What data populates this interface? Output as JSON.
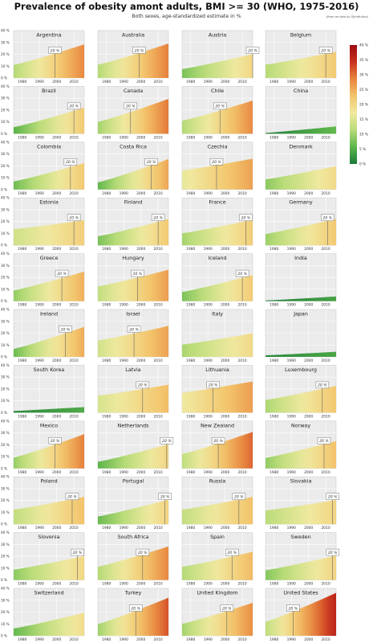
{
  "chart_data": {
    "type": "area",
    "title": "Prevalence of obesity amont adults, BMI >= 30 (WHO, 1975-2016)",
    "subtitle": "Both sexes, age-standardized estimate in %",
    "credit": "(from an idea by @jmtfulton)",
    "x_range": [
      1975,
      2016
    ],
    "y_range": [
      0,
      40
    ],
    "x_ticks": [
      "1980",
      "1990",
      "2000",
      "2010"
    ],
    "y_ticks": [
      "0 %",
      "10 %",
      "20 %",
      "30 %",
      "40 %"
    ],
    "threshold_value": 20,
    "threshold_label": "20 %",
    "colorbar": {
      "range": [
        0,
        40
      ],
      "ticks": [
        "0 %",
        "5 %",
        "10 %",
        "15 %",
        "20 %",
        "25 %",
        "30 %",
        "35 %",
        "40 %"
      ],
      "colors": [
        "#1a7a3a",
        "#5cb54a",
        "#b9dc78",
        "#f0e9a0",
        "#f3c56c",
        "#e8853e",
        "#c8301e",
        "#9e0b12"
      ]
    },
    "countries": [
      {
        "name": "Argentina",
        "y1975": 11.0,
        "y2016": 28.3,
        "cross20": 1999
      },
      {
        "name": "Australia",
        "y1975": 11.2,
        "y2016": 29.0,
        "cross20": 1999
      },
      {
        "name": "Austria",
        "y1975": 7.5,
        "y2016": 20.1,
        "cross20": 2016
      },
      {
        "name": "Belgium",
        "y1975": 11.3,
        "y2016": 22.1,
        "cross20": 2010
      },
      {
        "name": "Brazil",
        "y1975": 5.5,
        "y2016": 22.1,
        "cross20": 2010
      },
      {
        "name": "Canada",
        "y1975": 10.0,
        "y2016": 29.4,
        "cross20": 1994
      },
      {
        "name": "Chile",
        "y1975": 11.0,
        "y2016": 28.0,
        "cross20": 1997
      },
      {
        "name": "China",
        "y1975": 0.7,
        "y2016": 6.2,
        "cross20": null
      },
      {
        "name": "Colombia",
        "y1975": 6.8,
        "y2016": 22.3,
        "cross20": 2008
      },
      {
        "name": "Costa Rica",
        "y1975": 6.0,
        "y2016": 25.7,
        "cross20": 2006
      },
      {
        "name": "Czechia",
        "y1975": 16.1,
        "y2016": 26.0,
        "cross20": 1995
      },
      {
        "name": "Denmark",
        "y1975": 8.6,
        "y2016": 19.7,
        "cross20": null
      },
      {
        "name": "Estonia",
        "y1975": 13.6,
        "y2016": 21.2,
        "cross20": 2010
      },
      {
        "name": "Finland",
        "y1975": 7.6,
        "y2016": 22.2,
        "cross20": 2010
      },
      {
        "name": "France",
        "y1975": 10.1,
        "y2016": 21.6,
        "cross20": 2012
      },
      {
        "name": "Germany",
        "y1975": 9.6,
        "y2016": 22.3,
        "cross20": 2011
      },
      {
        "name": "Greece",
        "y1975": 9.0,
        "y2016": 24.9,
        "cross20": 2003
      },
      {
        "name": "Hungary",
        "y1975": 12.4,
        "y2016": 26.4,
        "cross20": 1998
      },
      {
        "name": "Iceland",
        "y1975": 7.6,
        "y2016": 21.9,
        "cross20": 2010
      },
      {
        "name": "India",
        "y1975": 0.5,
        "y2016": 3.9,
        "cross20": null
      },
      {
        "name": "Ireland",
        "y1975": 6.7,
        "y2016": 25.3,
        "cross20": 2005
      },
      {
        "name": "Israel",
        "y1975": 13.8,
        "y2016": 26.1,
        "cross20": 1996
      },
      {
        "name": "Italy",
        "y1975": 10.3,
        "y2016": 19.9,
        "cross20": null
      },
      {
        "name": "Japan",
        "y1975": 1.3,
        "y2016": 4.3,
        "cross20": null
      },
      {
        "name": "South Korea",
        "y1975": 1.4,
        "y2016": 4.7,
        "cross20": null
      },
      {
        "name": "Latvia",
        "y1975": 14.3,
        "y2016": 23.6,
        "cross20": 2001
      },
      {
        "name": "Lithuania",
        "y1975": 16.8,
        "y2016": 26.3,
        "cross20": 1993
      },
      {
        "name": "Luxembourg",
        "y1975": 10.7,
        "y2016": 22.6,
        "cross20": 2008
      },
      {
        "name": "Mexico",
        "y1975": 9.1,
        "y2016": 28.9,
        "cross20": 1999
      },
      {
        "name": "Netherlands",
        "y1975": 5.6,
        "y2016": 20.4,
        "cross20": 2015
      },
      {
        "name": "New Zealand",
        "y1975": 12.1,
        "y2016": 30.8,
        "cross20": 1996
      },
      {
        "name": "Norway",
        "y1975": 8.9,
        "y2016": 23.1,
        "cross20": 2009
      },
      {
        "name": "Poland",
        "y1975": 12.3,
        "y2016": 23.1,
        "cross20": 2009
      },
      {
        "name": "Portugal",
        "y1975": 6.5,
        "y2016": 20.8,
        "cross20": 2014
      },
      {
        "name": "Russia",
        "y1975": 12.3,
        "y2016": 23.1,
        "cross20": 2008
      },
      {
        "name": "Slovakia",
        "y1975": 11.6,
        "y2016": 20.5,
        "cross20": 2014
      },
      {
        "name": "Slovenia",
        "y1975": 8.7,
        "y2016": 20.2,
        "cross20": 2012
      },
      {
        "name": "South Africa",
        "y1975": 11.2,
        "y2016": 28.3,
        "cross20": 2001
      },
      {
        "name": "Spain",
        "y1975": 11.1,
        "y2016": 23.8,
        "cross20": 2004
      },
      {
        "name": "Sweden",
        "y1975": 8.2,
        "y2016": 20.6,
        "cross20": 2014
      },
      {
        "name": "Switzerland",
        "y1975": 6.1,
        "y2016": 19.5,
        "cross20": null
      },
      {
        "name": "Turkey",
        "y1975": 9.9,
        "y2016": 32.1,
        "cross20": 1997
      },
      {
        "name": "United Kingdom",
        "y1975": 10.1,
        "y2016": 27.8,
        "cross20": 2001
      },
      {
        "name": "United States",
        "y1975": 11.8,
        "y2016": 36.2,
        "cross20": 1991
      }
    ]
  }
}
